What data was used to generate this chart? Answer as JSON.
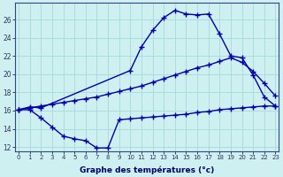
{
  "xlabel": "Graphe des températures (°c)",
  "bg_color": "#cff0f0",
  "grid_color": "#aadddd",
  "line_color": "#0000aa",
  "s1_x": [
    0,
    1,
    2,
    10,
    11,
    12,
    13,
    14,
    15,
    16,
    17,
    18,
    19,
    20,
    21,
    22,
    23
  ],
  "s1_y": [
    16.1,
    16.4,
    16.3,
    20.4,
    23.0,
    24.8,
    26.2,
    27.0,
    26.6,
    26.5,
    26.6,
    24.4,
    22.0,
    21.8,
    19.9,
    17.5,
    16.5
  ],
  "s2_x": [
    0,
    1,
    2,
    3,
    4,
    5,
    6,
    7,
    8,
    9,
    10,
    11,
    12,
    13,
    14,
    15,
    16,
    17,
    18,
    19,
    20,
    21,
    22,
    23
  ],
  "s2_y": [
    16.1,
    16.3,
    16.5,
    16.7,
    16.9,
    17.1,
    17.3,
    17.5,
    17.8,
    18.1,
    18.4,
    18.7,
    19.1,
    19.5,
    19.9,
    20.3,
    20.7,
    21.0,
    21.4,
    21.8,
    21.3,
    20.3,
    19.0,
    17.6
  ],
  "s3_x": [
    0,
    1,
    2,
    3,
    4,
    5,
    6,
    7,
    8,
    9,
    10,
    11,
    12,
    13,
    14,
    15,
    16,
    17,
    18,
    19,
    20,
    21,
    22,
    23
  ],
  "s3_y": [
    16.1,
    16.1,
    15.2,
    14.2,
    13.2,
    12.9,
    12.7,
    11.9,
    11.9,
    15.0,
    15.1,
    15.2,
    15.3,
    15.4,
    15.5,
    15.6,
    15.8,
    15.9,
    16.1,
    16.2,
    16.3,
    16.4,
    16.5,
    16.5
  ],
  "xlim": [
    0,
    23
  ],
  "ylim": [
    11.5,
    27.5
  ],
  "yticks": [
    12,
    14,
    16,
    18,
    20,
    22,
    24,
    26
  ],
  "xticks": [
    0,
    1,
    2,
    3,
    4,
    5,
    6,
    7,
    8,
    9,
    10,
    11,
    12,
    13,
    14,
    15,
    16,
    17,
    18,
    19,
    20,
    21,
    22,
    23
  ]
}
